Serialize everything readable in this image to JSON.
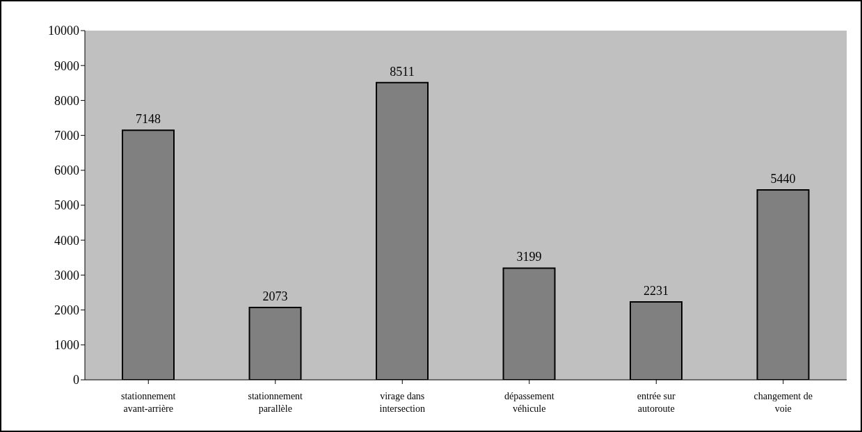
{
  "chart_data": {
    "type": "bar",
    "categories": [
      "stationnement\navant-arrière",
      "stationnement\nparallèle",
      "virage dans\nintersection",
      "dépassement\nvéhicule",
      "entrée sur\nautoroute",
      "changement de\nvoie"
    ],
    "values": [
      7148,
      2073,
      8511,
      3199,
      2231,
      5440
    ],
    "color": "#808080",
    "ylim": [
      0,
      10000
    ],
    "yticks": [
      0,
      1000,
      2000,
      3000,
      4000,
      5000,
      6000,
      7000,
      8000,
      9000,
      10000
    ],
    "data_labels": true,
    "grid": false
  }
}
